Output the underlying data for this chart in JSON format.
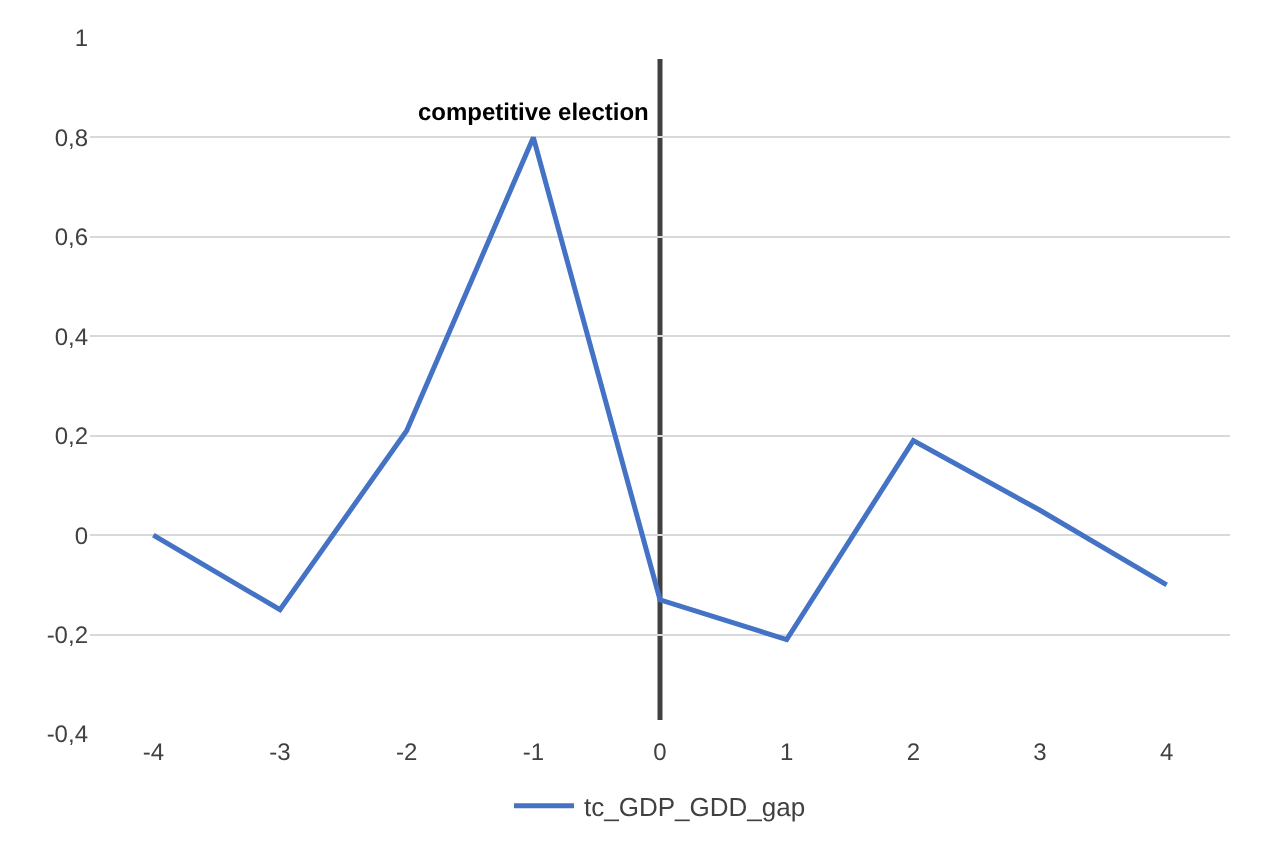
{
  "chart_data": {
    "type": "line",
    "x": [
      -4,
      -3,
      -2,
      -1,
      0,
      1,
      2,
      3,
      4
    ],
    "series": [
      {
        "name": "tc_GDP_GDD_gap",
        "color": "#4472c4",
        "values": [
          0,
          -0.15,
          0.21,
          0.8,
          -0.13,
          -0.21,
          0.19,
          0.05,
          -0.1
        ]
      }
    ],
    "xlim": [
      -4.5,
      4.5
    ],
    "xticks": [
      -4,
      -3,
      -2,
      -1,
      0,
      1,
      2,
      3,
      4
    ],
    "ylim": [
      -0.4,
      1
    ],
    "yticks": [
      {
        "value": -0.4,
        "label": "-0,4"
      },
      {
        "value": -0.2,
        "label": "-0,2"
      },
      0,
      {
        "value": 0.2,
        "label": "0,2"
      },
      {
        "value": 0.4,
        "label": "0,4"
      },
      {
        "value": 0.6,
        "label": "0,6"
      },
      {
        "value": 0.8,
        "label": "0,8"
      },
      1
    ],
    "ref_lines": [
      {
        "axis": "x",
        "value": 0,
        "label": "competitive election",
        "color": "#404040"
      }
    ],
    "grid": "y",
    "legend": "bottom",
    "marker": "none",
    "line_style": "solid"
  }
}
